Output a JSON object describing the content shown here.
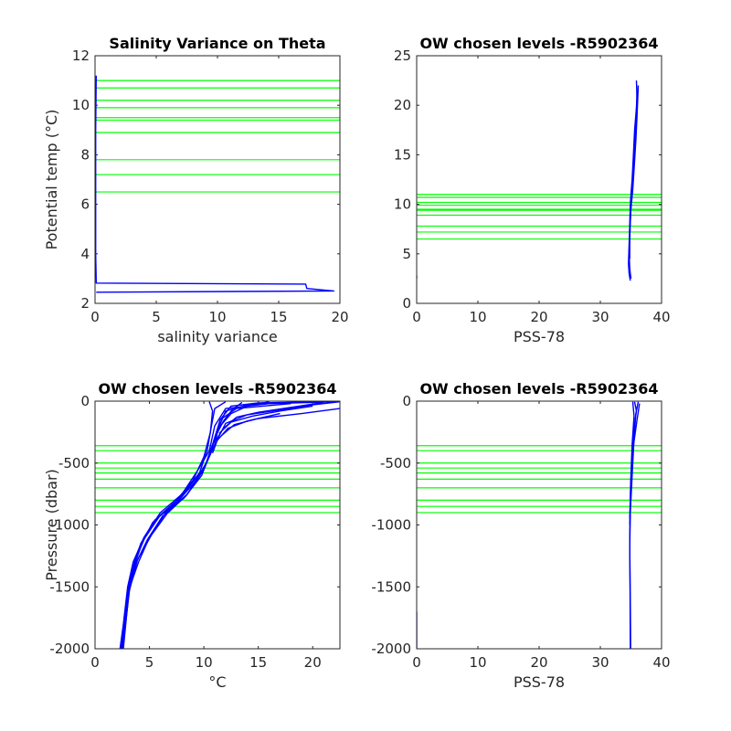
{
  "colors": {
    "profile": "#0000ff",
    "levels": "#00ff00",
    "axis": "#262626"
  },
  "chart_data": [
    {
      "type": "line",
      "title": "Salinity Variance on Theta",
      "xlabel": "salinity variance",
      "ylabel": "Potential temp (°C)",
      "xlim": [
        0,
        20
      ],
      "ylim": [
        2,
        12
      ],
      "xticks": [
        0,
        5,
        10,
        15,
        20
      ],
      "yticks": [
        2,
        4,
        6,
        8,
        10,
        12
      ],
      "series": [
        {
          "values": [
            [
              0.1,
              11.2
            ],
            [
              0.05,
              9.0
            ],
            [
              0.05,
              6.0
            ],
            [
              0.05,
              4.0
            ],
            [
              0.1,
              2.9
            ],
            [
              0.1,
              2.82
            ],
            [
              17.2,
              2.78
            ],
            [
              17.3,
              2.6
            ],
            [
              19.5,
              2.5
            ],
            [
              0.1,
              2.45
            ]
          ]
        }
      ],
      "hlines": [
        11.0,
        10.7,
        10.2,
        9.9,
        9.5,
        9.4,
        8.9,
        7.8,
        7.2,
        6.5
      ]
    },
    {
      "type": "line",
      "title": "OW chosen levels -R5902364",
      "xlabel": "PSS-78",
      "ylabel": "",
      "xlim": [
        0,
        40
      ],
      "ylim": [
        0,
        25
      ],
      "xticks": [
        0,
        10,
        20,
        30,
        40
      ],
      "yticks": [
        0,
        5,
        10,
        15,
        20,
        25
      ],
      "series": [
        {
          "values": [
            [
              35.9,
              22.5
            ],
            [
              36.0,
              20.5
            ],
            [
              35.6,
              17.5
            ],
            [
              35.4,
              15.0
            ],
            [
              35.2,
              12.5
            ],
            [
              35.0,
              11.0
            ],
            [
              34.9,
              10.0
            ],
            [
              34.8,
              8.0
            ],
            [
              34.7,
              6.0
            ],
            [
              34.6,
              4.0
            ],
            [
              34.7,
              3.0
            ],
            [
              34.9,
              2.3
            ]
          ]
        },
        {
          "values": [
            [
              36.2,
              22.0
            ],
            [
              36.0,
              19.0
            ],
            [
              35.8,
              16.5
            ],
            [
              35.5,
              13.5
            ],
            [
              35.3,
              11.5
            ],
            [
              35.0,
              9.5
            ],
            [
              34.8,
              7.0
            ],
            [
              34.7,
              5.0
            ],
            [
              34.8,
              3.5
            ],
            [
              35.0,
              2.5
            ]
          ]
        },
        {
          "values": [
            [
              36.0,
              21.5
            ],
            [
              35.8,
              18.0
            ],
            [
              35.4,
              14.0
            ],
            [
              35.1,
              11.0
            ],
            [
              34.9,
              8.5
            ],
            [
              34.8,
              6.0
            ],
            [
              34.8,
              4.5
            ]
          ]
        },
        {
          "values": [
            [
              0.0,
              2.8
            ],
            [
              0.0,
              2.5
            ]
          ]
        }
      ],
      "hlines": [
        11.0,
        10.7,
        10.2,
        9.9,
        9.5,
        9.4,
        8.9,
        7.8,
        7.2,
        6.5
      ]
    },
    {
      "type": "line",
      "title": "OW chosen levels -R5902364",
      "xlabel": "°C",
      "ylabel": "Pressure (dbar)",
      "xlim": [
        0,
        22.5
      ],
      "ylim": [
        -2000,
        0
      ],
      "xticks": [
        0,
        5,
        10,
        15,
        20
      ],
      "yticks": [
        -2000,
        -1500,
        -1000,
        -500,
        0
      ],
      "series": [
        {
          "values": [
            [
              22.3,
              -5
            ],
            [
              16,
              -20
            ],
            [
              12,
              -60
            ],
            [
              11,
              -200
            ],
            [
              10.5,
              -400
            ],
            [
              9.5,
              -550
            ],
            [
              8,
              -750
            ],
            [
              6,
              -900
            ],
            [
              4.5,
              -1100
            ],
            [
              3.5,
              -1300
            ],
            [
              3,
              -1500
            ],
            [
              2.6,
              -1800
            ],
            [
              2.3,
              -2000
            ]
          ]
        },
        {
          "values": [
            [
              21,
              -5
            ],
            [
              15,
              -15
            ],
            [
              12.5,
              -40
            ],
            [
              11.5,
              -150
            ],
            [
              11,
              -350
            ],
            [
              10,
              -550
            ],
            [
              8.5,
              -750
            ],
            [
              6.5,
              -900
            ],
            [
              5,
              -1100
            ],
            [
              4,
              -1300
            ],
            [
              3.2,
              -1500
            ],
            [
              2.8,
              -1800
            ],
            [
              2.5,
              -2000
            ]
          ]
        },
        {
          "values": [
            [
              19,
              -5
            ],
            [
              14,
              -30
            ],
            [
              12,
              -80
            ],
            [
              11.2,
              -250
            ],
            [
              10.6,
              -420
            ],
            [
              9.8,
              -600
            ],
            [
              8.2,
              -780
            ],
            [
              6.2,
              -930
            ],
            [
              4.8,
              -1120
            ],
            [
              3.7,
              -1320
            ],
            [
              3.0,
              -1550
            ],
            [
              2.6,
              -1850
            ],
            [
              2.4,
              -2000
            ]
          ]
        },
        {
          "values": [
            [
              18,
              -20
            ],
            [
              13,
              -60
            ],
            [
              11.5,
              -150
            ],
            [
              10.8,
              -350
            ],
            [
              10.2,
              -500
            ],
            [
              9.2,
              -650
            ],
            [
              7.5,
              -820
            ],
            [
              5.5,
              -960
            ],
            [
              4.2,
              -1150
            ],
            [
              3.3,
              -1400
            ],
            [
              2.8,
              -1700
            ],
            [
              2.5,
              -2000
            ]
          ]
        },
        {
          "values": [
            [
              12,
              -5
            ],
            [
              11,
              -60
            ],
            [
              10.7,
              -200
            ],
            [
              10.3,
              -400
            ],
            [
              9.6,
              -580
            ],
            [
              8.0,
              -760
            ],
            [
              6.0,
              -920
            ],
            [
              4.6,
              -1100
            ],
            [
              3.6,
              -1300
            ],
            [
              2.9,
              -1600
            ],
            [
              2.4,
              -2000
            ]
          ]
        },
        {
          "values": [
            [
              10.5,
              -5
            ],
            [
              10.8,
              -80
            ],
            [
              10.6,
              -250
            ],
            [
              10.0,
              -450
            ],
            [
              9.0,
              -640
            ],
            [
              7.2,
              -830
            ],
            [
              5.3,
              -980
            ],
            [
              4.0,
              -1200
            ],
            [
              3.1,
              -1500
            ],
            [
              2.6,
              -1900
            ]
          ]
        },
        {
          "values": [
            [
              22.5,
              -5
            ],
            [
              20,
              -30
            ],
            [
              17,
              -70
            ],
            [
              14,
              -110
            ],
            [
              12,
              -180
            ],
            [
              11.3,
              -300
            ],
            [
              10.8,
              -420
            ]
          ]
        },
        {
          "values": [
            [
              21,
              -10
            ],
            [
              18,
              -50
            ],
            [
              15,
              -90
            ],
            [
              13,
              -130
            ],
            [
              11.8,
              -220
            ],
            [
              11.0,
              -330
            ]
          ]
        },
        {
          "values": [
            [
              16,
              -5
            ],
            [
              14,
              -40
            ],
            [
              12.5,
              -100
            ],
            [
              11.5,
              -200
            ],
            [
              11.0,
              -300
            ]
          ]
        },
        {
          "values": [
            [
              20,
              -40
            ],
            [
              17,
              -80
            ],
            [
              14.5,
              -120
            ],
            [
              12.5,
              -170
            ],
            [
              11.4,
              -260
            ]
          ]
        },
        {
          "values": [
            [
              22.5,
              -60
            ],
            [
              19,
              -100
            ],
            [
              15,
              -140
            ],
            [
              12.8,
              -190
            ],
            [
              11.6,
              -280
            ]
          ]
        },
        {
          "values": [
            [
              13.5,
              -10
            ],
            [
              12.6,
              -70
            ],
            [
              11.8,
              -160
            ],
            [
              11.1,
              -280
            ]
          ]
        },
        {
          "values": [
            [
              17,
              -100
            ],
            [
              14,
              -160
            ],
            [
              12.2,
              -220
            ],
            [
              11.2,
              -320
            ]
          ]
        },
        {
          "values": [
            [
              9.5,
              -600
            ],
            [
              7.8,
              -780
            ],
            [
              5.8,
              -940
            ],
            [
              4.4,
              -1130
            ],
            [
              3.5,
              -1350
            ],
            [
              2.9,
              -1650
            ],
            [
              2.3,
              -2000
            ]
          ]
        },
        {
          "values": [
            [
              9.9,
              -560
            ],
            [
              8.4,
              -760
            ],
            [
              6.6,
              -910
            ],
            [
              5.2,
              -1080
            ],
            [
              3.9,
              -1280
            ],
            [
              3.1,
              -1550
            ],
            [
              2.6,
              -2000
            ]
          ]
        }
      ],
      "hlines": [
        -360,
        -400,
        -500,
        -540,
        -580,
        -630,
        -700,
        -800,
        -850,
        -900
      ]
    },
    {
      "type": "line",
      "title": "OW chosen levels -R5902364",
      "xlabel": "PSS-78",
      "ylabel": "",
      "xlim": [
        0,
        40
      ],
      "ylim": [
        -2000,
        0
      ],
      "xticks": [
        0,
        10,
        20,
        30,
        40
      ],
      "yticks": [
        -2000,
        -1500,
        -1000,
        -500,
        0
      ],
      "series": [
        {
          "values": [
            [
              36.2,
              -5
            ],
            [
              35.8,
              -100
            ],
            [
              35.5,
              -300
            ],
            [
              35.2,
              -600
            ],
            [
              34.9,
              -900
            ],
            [
              34.8,
              -1200
            ],
            [
              34.9,
              -1600
            ],
            [
              34.95,
              -2000
            ]
          ]
        },
        {
          "values": [
            [
              35.6,
              -5
            ],
            [
              35.9,
              -80
            ],
            [
              35.4,
              -250
            ],
            [
              35.1,
              -500
            ],
            [
              34.9,
              -800
            ],
            [
              34.8,
              -1100
            ],
            [
              34.85,
              -1500
            ],
            [
              34.9,
              -2000
            ]
          ]
        },
        {
          "values": [
            [
              36.4,
              -20
            ],
            [
              36.0,
              -150
            ],
            [
              35.3,
              -400
            ],
            [
              35.0,
              -700
            ],
            [
              34.8,
              -1000
            ]
          ]
        },
        {
          "values": [
            [
              35.3,
              -5
            ],
            [
              35.5,
              -120
            ],
            [
              35.2,
              -350
            ],
            [
              34.95,
              -650
            ],
            [
              34.8,
              -950
            ]
          ]
        },
        {
          "values": [
            [
              0.0,
              -1700
            ],
            [
              0.0,
              -2000
            ]
          ]
        }
      ],
      "hlines": [
        -360,
        -400,
        -500,
        -540,
        -580,
        -630,
        -700,
        -800,
        -850,
        -900
      ]
    }
  ]
}
